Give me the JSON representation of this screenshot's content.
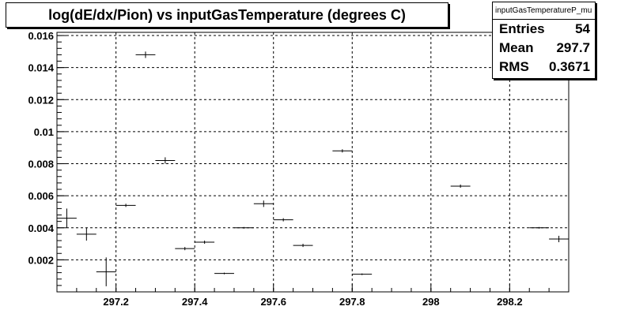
{
  "title": "log(dE/dx/Pion) vs inputGasTemperature (degrees C)",
  "stats": {
    "name": "inputGasTemperatureP_mu",
    "rows": [
      {
        "label": "Entries",
        "value": "54"
      },
      {
        "label": "Mean",
        "value": "297.7"
      },
      {
        "label": "RMS",
        "value": "0.3671"
      }
    ]
  },
  "chart_data": {
    "type": "scatter",
    "title": "log(dE/dx/Pion) vs inputGasTemperature (degrees C)",
    "xlim": [
      297.05,
      298.35
    ],
    "ylim": [
      0.0,
      0.0162
    ],
    "x_ticks": [
      297.2,
      297.4,
      297.6,
      297.8,
      298.0,
      298.2
    ],
    "x_tick_labels": [
      "297.2",
      "297.4",
      "297.6",
      "297.8",
      "298",
      "298.2"
    ],
    "y_ticks": [
      0.002,
      0.004,
      0.006,
      0.008,
      0.01,
      0.012,
      0.014,
      0.016
    ],
    "y_tick_labels": [
      "0.002",
      "0.004",
      "0.006",
      "0.008",
      "0.01",
      "0.012",
      "0.014",
      "0.016"
    ],
    "grid": true,
    "bin_halfwidth": 0.025,
    "points": [
      {
        "x": 297.075,
        "y": 0.0046,
        "ey": 0.0006
      },
      {
        "x": 297.125,
        "y": 0.0036,
        "ey": 0.0004
      },
      {
        "x": 297.175,
        "y": 0.00125,
        "ey": 0.0009
      },
      {
        "x": 297.225,
        "y": 0.0054,
        "ey": 0.0001
      },
      {
        "x": 297.275,
        "y": 0.0148,
        "ey": 0.0002
      },
      {
        "x": 297.325,
        "y": 0.0082,
        "ey": 0.0002
      },
      {
        "x": 297.375,
        "y": 0.0027,
        "ey": 0.0001
      },
      {
        "x": 297.425,
        "y": 0.0031,
        "ey": 0.0001
      },
      {
        "x": 297.475,
        "y": 0.00115,
        "ey": 5e-05
      },
      {
        "x": 297.525,
        "y": 0.004,
        "ey": 5e-05
      },
      {
        "x": 297.575,
        "y": 0.0055,
        "ey": 0.0002
      },
      {
        "x": 297.625,
        "y": 0.0045,
        "ey": 0.0001
      },
      {
        "x": 297.675,
        "y": 0.0029,
        "ey": 0.0001
      },
      {
        "x": 297.775,
        "y": 0.0088,
        "ey": 0.0001
      },
      {
        "x": 297.825,
        "y": 0.0011,
        "ey": 5e-05
      },
      {
        "x": 298.075,
        "y": 0.0066,
        "ey": 0.0001
      },
      {
        "x": 298.275,
        "y": 0.004,
        "ey": 5e-05
      },
      {
        "x": 298.325,
        "y": 0.0033,
        "ey": 0.0002
      }
    ]
  }
}
